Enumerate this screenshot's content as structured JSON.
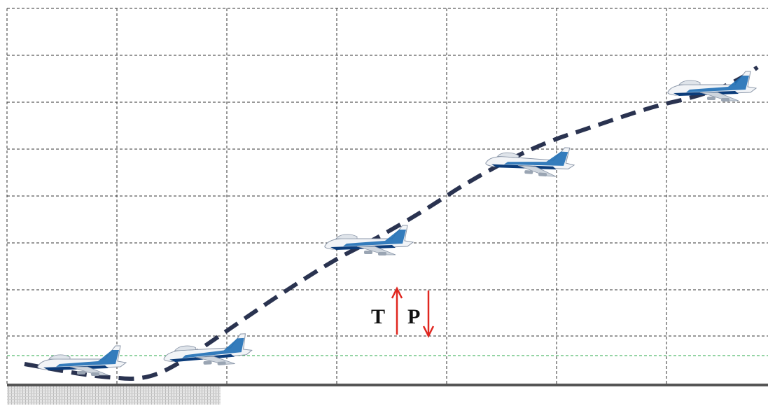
{
  "labels": {
    "thrust": "T",
    "weight": "P"
  }
}
